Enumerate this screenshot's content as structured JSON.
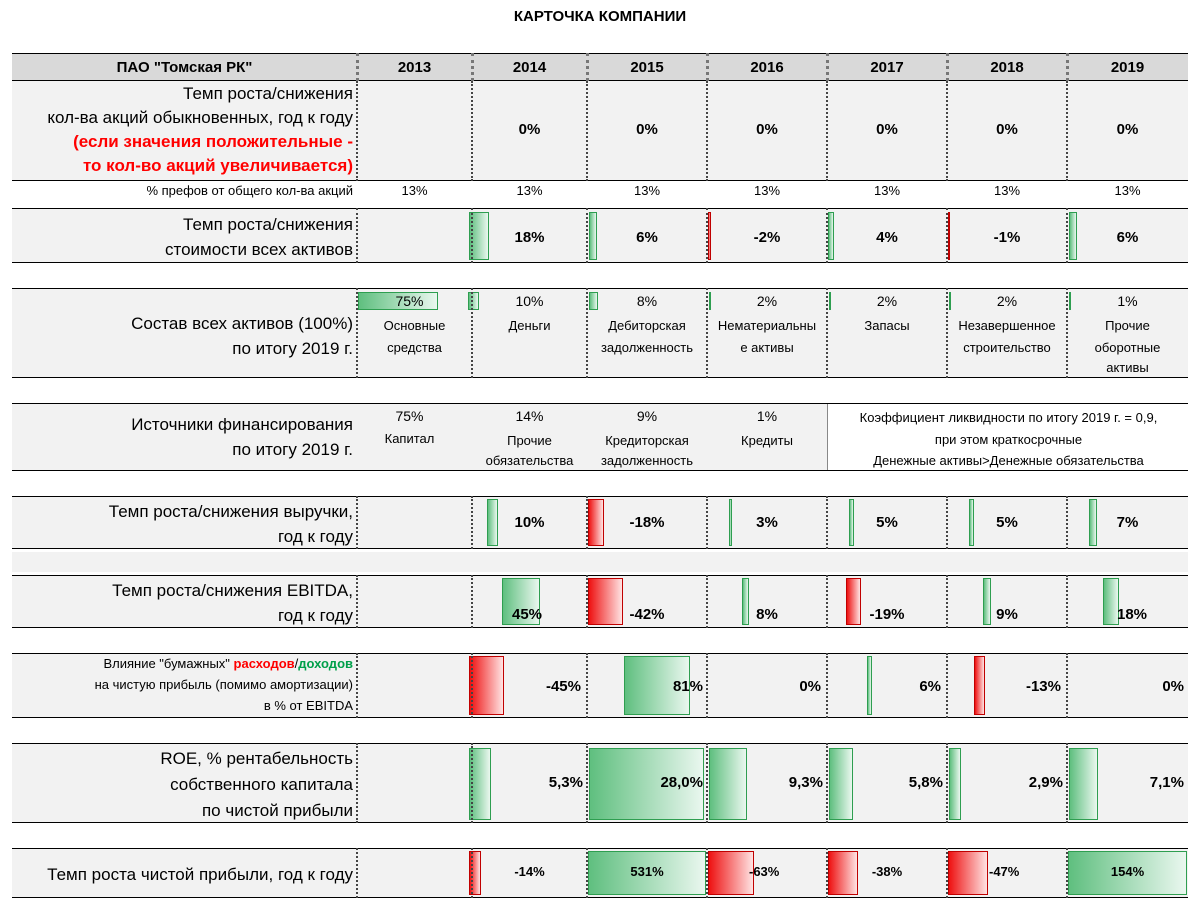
{
  "title": "КАРТОЧКА КОМПАНИИ",
  "header": {
    "company": "ПАО \"Томская РК\"",
    "years": [
      "2013",
      "2014",
      "2015",
      "2016",
      "2017",
      "2018",
      "2019"
    ]
  },
  "shares": {
    "label_line1": "Темп роста/снижения",
    "label_line2": "кол-ва акций обыкновенных,  год к году",
    "note_line1": "(если значения положительные -",
    "note_line2": "то кол-во акций увеличивается)",
    "values": [
      "0%",
      "0%",
      "0%",
      "0%",
      "0%",
      "0%"
    ]
  },
  "prefs": {
    "label": "% префов от общего кол-ва акций",
    "values": [
      "13%",
      "13%",
      "13%",
      "13%",
      "13%",
      "13%",
      "13%"
    ]
  },
  "assets_growth": {
    "label_line1": "Темп роста/снижения",
    "label_line2": "стоимости всех активов",
    "values": [
      "18%",
      "6%",
      "-2%",
      "4%",
      "-1%",
      "6%"
    ],
    "numbers": [
      18,
      6,
      -2,
      4,
      -1,
      6
    ]
  },
  "assets_structure": {
    "label_line1": "Состав всех активов (100%)",
    "label_line2": "по итогу 2019 г.",
    "items": [
      {
        "pct": "75%",
        "l1": "Основные",
        "l2": "средства",
        "l3": "",
        "share": 75
      },
      {
        "pct": "10%",
        "l1": "Деньги",
        "l2": "",
        "l3": "",
        "share": 10
      },
      {
        "pct": "8%",
        "l1": "Дебиторская",
        "l2": "задолженность",
        "l3": "",
        "share": 8
      },
      {
        "pct": "2%",
        "l1": "Нематериальны",
        "l2": "е активы",
        "l3": "",
        "share": 2
      },
      {
        "pct": "2%",
        "l1": "Запасы",
        "l2": "",
        "l3": "",
        "share": 2
      },
      {
        "pct": "2%",
        "l1": "Незавершенное",
        "l2": "строительство",
        "l3": "",
        "share": 2
      },
      {
        "pct": "1%",
        "l1": "Прочие",
        "l2": "оборотные",
        "l3": "активы",
        "share": 1
      }
    ]
  },
  "financing": {
    "label_line1": "Источники финансирования",
    "label_line2": "по итогу 2019 г.",
    "items": [
      {
        "pct": "75%",
        "l1": "Капитал",
        "l2": ""
      },
      {
        "pct": "14%",
        "l1": "Прочие",
        "l2": "обязательства"
      },
      {
        "pct": "9%",
        "l1": "Кредиторская",
        "l2": "задолженность"
      },
      {
        "pct": "1%",
        "l1": "Кредиты",
        "l2": ""
      }
    ],
    "liquidity_line1": "Коэффициент ликвидности по итогу 2019 г. = 0,9,",
    "liquidity_line2": "при этом краткосрочные",
    "liquidity_line3": "Денежные активы>Денежные обязательства"
  },
  "revenue": {
    "label_line1": "Темп роста/снижения выручки,",
    "label_line2": "год к году",
    "values": [
      "10%",
      "-18%",
      "3%",
      "5%",
      "5%",
      "7%"
    ],
    "numbers": [
      10,
      -18,
      3,
      5,
      5,
      7
    ]
  },
  "ebitda": {
    "label_line1": "Темп роста/снижения EBITDA,",
    "label_line2": "год к году",
    "values": [
      "45%",
      "-42%",
      "8%",
      "-19%",
      "9%",
      "18%"
    ],
    "numbers": [
      45,
      -42,
      8,
      -19,
      9,
      18
    ]
  },
  "paper": {
    "label_pre": "Влияние \"бумажных\" ",
    "label_red": "расходов",
    "label_slash": "/",
    "label_green": "доходов",
    "label_line2": "на чистую прибыль (помимо амортизации)",
    "label_line3": "в % от EBITDA",
    "values": [
      "-45%",
      "81%",
      "0%",
      "6%",
      "-13%",
      "0%"
    ],
    "numbers": [
      -45,
      81,
      0,
      6,
      -13,
      0
    ]
  },
  "roe": {
    "label_line1": "ROE, % рентабельность",
    "label_line2": "собственного капитала",
    "label_line3": "по чистой прибыли",
    "values": [
      "5,3%",
      "28,0%",
      "9,3%",
      "5,8%",
      "2,9%",
      "7,1%"
    ],
    "numbers": [
      5.3,
      28.0,
      9.3,
      5.8,
      2.9,
      7.1
    ]
  },
  "net_profit": {
    "label": "Темп роста чистой прибыли, год к году",
    "values": [
      "-14%",
      "531%",
      "-63%",
      "-38%",
      "-47%",
      "154%"
    ],
    "numbers": [
      -14,
      531,
      -63,
      -38,
      -47,
      154
    ]
  },
  "colors": {
    "positive": "#5fbf7f",
    "negative": "#ee1111",
    "band": "#f2f2f2",
    "header": "#d9d9d9"
  }
}
